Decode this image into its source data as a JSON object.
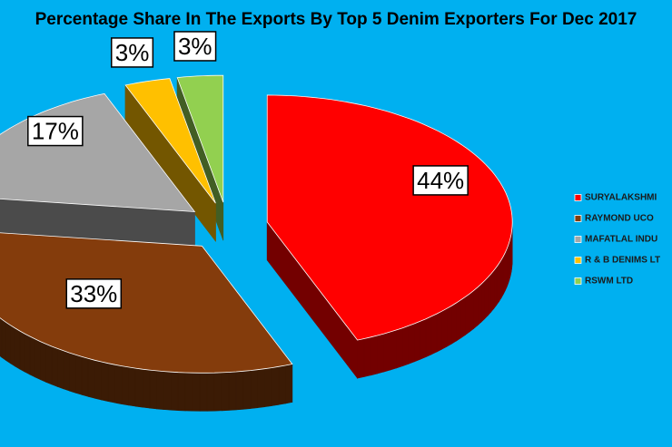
{
  "chart_data": {
    "type": "pie",
    "title": "Percentage Share In The Exports By Top 5 Denim Exporters For Dec 2017",
    "categories": [
      "SURYALAKSHMI",
      "RAYMOND UCO",
      "MAFATLAL INDU",
      "R & B DENIMS LT",
      "RSWM LTD"
    ],
    "values": [
      44,
      33,
      17,
      3,
      3
    ],
    "value_labels": [
      "44%",
      "33%",
      "17%",
      "3%",
      "3%"
    ],
    "colors": [
      "#ff0000",
      "#843c0c",
      "#a6a6a6",
      "#ffc000",
      "#92d050"
    ],
    "legend_position": "right"
  }
}
